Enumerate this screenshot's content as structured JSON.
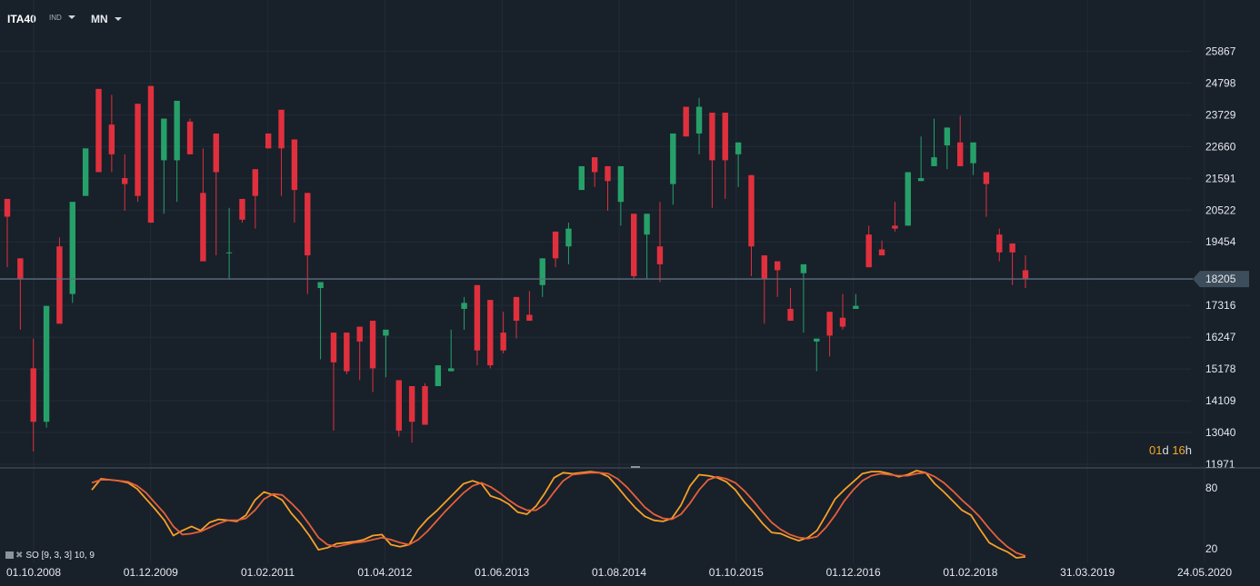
{
  "header": {
    "symbol": "ITA40",
    "symbol_type": "IND",
    "timeframe": "MN"
  },
  "timer": {
    "days": "01",
    "days_unit": "d",
    "hours": "16",
    "hours_unit": "h"
  },
  "indicator": {
    "label": "SO [9, 3, 3] 10, 9",
    "icon": "settings-icon",
    "close_icon": "close-icon"
  },
  "colors": {
    "up": "#26a069",
    "down": "#e0303d",
    "k_line": "#f6a028",
    "d_line": "#e5603a",
    "current_price_line": "#5d6e7e",
    "background": "#18202a"
  },
  "chart_data": [
    {
      "type": "candlestick",
      "x_labels": [
        "01.10.2008",
        "01.12.2009",
        "01.02.2011",
        "01.04.2012",
        "01.06.2013",
        "01.08.2014",
        "01.10.2015",
        "01.12.2016",
        "01.02.2018",
        "31.03.2019",
        "24.05.2020"
      ],
      "y_ticks": [
        11971,
        13040,
        14109,
        15178,
        16247,
        17316,
        18205,
        19454,
        20522,
        21591,
        22660,
        23729,
        24798,
        25867
      ],
      "ylim": [
        11971,
        26400
      ],
      "current_price": 18205,
      "values": [
        [
          20900,
          20300,
          19100,
          18600
        ],
        [
          18900,
          18200,
          17700,
          16500
        ],
        [
          15200,
          13400,
          16200,
          12400
        ],
        [
          13400,
          17300,
          15400,
          13200
        ],
        [
          19300,
          16700,
          19000,
          19600
        ],
        [
          17700,
          20800,
          17800,
          17400
        ],
        [
          21000,
          22600,
          21000,
          22500
        ],
        [
          24600,
          21800,
          24200,
          24100
        ],
        [
          23400,
          22400,
          21800,
          24400
        ],
        [
          21600,
          21400,
          22400,
          20500
        ],
        [
          24100,
          21000,
          23000,
          20800
        ],
        [
          24700,
          20100,
          20800,
          20100
        ],
        [
          22200,
          23600,
          20700,
          20400
        ],
        [
          22200,
          24200,
          20800,
          23100
        ],
        [
          23500,
          22400,
          22800,
          23600
        ],
        [
          21100,
          18800,
          22600,
          20500
        ],
        [
          23100,
          21800,
          19100,
          19000
        ],
        [
          19100,
          19100,
          18200,
          20600
        ],
        [
          20900,
          20200,
          20100,
          20500
        ],
        [
          21900,
          21000,
          19900,
          21000
        ],
        [
          23100,
          22600,
          22600,
          22700
        ],
        [
          23900,
          22600,
          21000,
          22000
        ],
        [
          22900,
          21200,
          20100,
          21200
        ],
        [
          21100,
          19000,
          17800,
          17700
        ],
        [
          17900,
          18100,
          15700,
          15500
        ],
        [
          16400,
          15400,
          13300,
          13100
        ],
        [
          16400,
          15100,
          15300,
          15000
        ],
        [
          16600,
          16100,
          14800,
          15000
        ],
        [
          16800,
          15200,
          16300,
          14400
        ],
        [
          16300,
          16500,
          14900,
          15400
        ],
        [
          14800,
          13100,
          13600,
          12900
        ],
        [
          14600,
          13400,
          13000,
          12700
        ],
        [
          14600,
          13300,
          14700,
          14300
        ],
        [
          14600,
          15300,
          15300,
          14700
        ],
        [
          15100,
          15200,
          16500,
          15400
        ],
        [
          17200,
          17400,
          17600,
          16500
        ],
        [
          18000,
          15800,
          15300,
          16100
        ],
        [
          17500,
          15300,
          15600,
          15200
        ],
        [
          16400,
          15800,
          17100,
          15700
        ],
        [
          17600,
          16800,
          16900,
          16200
        ],
        [
          17000,
          16800,
          17800,
          17200
        ],
        [
          18000,
          18900,
          18400,
          17600
        ],
        [
          19800,
          18900,
          19300,
          18600
        ],
        [
          19300,
          19900,
          20100,
          18700
        ],
        [
          21200,
          22000,
          21800,
          21200
        ],
        [
          22300,
          21800,
          21300,
          21800
        ],
        [
          22000,
          21500,
          21100,
          20500
        ],
        [
          20800,
          22000,
          20000,
          20600
        ],
        [
          20400,
          18300,
          18700,
          18200
        ],
        [
          19700,
          20400,
          19300,
          18200
        ],
        [
          19300,
          18700,
          20800,
          18100
        ],
        [
          21400,
          23100,
          22600,
          20700
        ],
        [
          24000,
          23000,
          24000,
          23500
        ],
        [
          23100,
          24000,
          24300,
          22400
        ],
        [
          23800,
          22200,
          23600,
          20600
        ],
        [
          23800,
          22200,
          21100,
          20900
        ],
        [
          22400,
          22800,
          21300,
          22700
        ],
        [
          21700,
          19300,
          18300,
          18400
        ],
        [
          19000,
          18200,
          16800,
          16700
        ],
        [
          18800,
          18500,
          17700,
          17600
        ],
        [
          17200,
          16800,
          17600,
          17900
        ],
        [
          18400,
          18700,
          17500,
          16400
        ],
        [
          16100,
          16200,
          15800,
          15100
        ],
        [
          17100,
          16300,
          15600,
          17100
        ],
        [
          16900,
          16600,
          17700,
          16500
        ],
        [
          17200,
          17300,
          17600,
          17700
        ],
        [
          19700,
          18600,
          20000,
          19200
        ],
        [
          19200,
          19000,
          19100,
          19500
        ],
        [
          20000,
          19900,
          19800,
          20800
        ],
        [
          20000,
          21800,
          21400,
          21100
        ],
        [
          21500,
          21600,
          21700,
          23000
        ],
        [
          22000,
          22300,
          23600,
          22300
        ],
        [
          22700,
          23300,
          21900,
          23300
        ],
        [
          22800,
          22000,
          23400,
          23700
        ],
        [
          22100,
          22800,
          21700,
          22100
        ],
        [
          21800,
          21400,
          20700,
          20300
        ],
        [
          19700,
          19100,
          19900,
          18800
        ],
        [
          19400,
          19100,
          19300,
          18000
        ],
        [
          18500,
          18200,
          19000,
          17900
        ]
      ]
    },
    {
      "type": "line",
      "title": "SO [9, 3, 3] 10, 9",
      "y_ticks": [
        20,
        80
      ],
      "series": [
        {
          "values": [
            78,
            89,
            88,
            87,
            85,
            79,
            69,
            59,
            48,
            33,
            38,
            42,
            38,
            46,
            49,
            48,
            47,
            53,
            68,
            76,
            73,
            68,
            55,
            45,
            33,
            19,
            21,
            25,
            26,
            27,
            29,
            33,
            34,
            24,
            22,
            24,
            39,
            49,
            57,
            66,
            75,
            84,
            87,
            84,
            72,
            69,
            64,
            56,
            54,
            62,
            75,
            90,
            95,
            94,
            95,
            96,
            95,
            91,
            81,
            70,
            60,
            52,
            48,
            47,
            50,
            63,
            82,
            93,
            92,
            90,
            86,
            78,
            66,
            56,
            45,
            36,
            35,
            31,
            28,
            31,
            38,
            53,
            69,
            78,
            86,
            94,
            96,
            96,
            94,
            91,
            93,
            97,
            95,
            84,
            76,
            67,
            58,
            53,
            39,
            26,
            21,
            17,
            11,
            12
          ]
        },
        {
          "values": [
            85,
            88,
            88,
            87,
            86,
            82,
            75,
            65,
            55,
            42,
            34,
            35,
            37,
            41,
            45,
            48,
            48,
            50,
            58,
            69,
            74,
            73,
            65,
            56,
            44,
            31,
            24,
            22,
            24,
            26,
            27,
            29,
            31,
            29,
            26,
            24,
            29,
            37,
            47,
            57,
            66,
            75,
            82,
            85,
            81,
            75,
            68,
            62,
            58,
            58,
            64,
            76,
            87,
            93,
            94,
            95,
            95,
            94,
            89,
            81,
            71,
            61,
            54,
            50,
            49,
            54,
            65,
            78,
            88,
            91,
            89,
            85,
            77,
            67,
            56,
            46,
            39,
            34,
            31,
            30,
            32,
            41,
            53,
            67,
            78,
            87,
            92,
            94,
            93,
            92,
            92,
            94,
            95,
            91,
            85,
            77,
            68,
            60,
            51,
            40,
            30,
            22,
            16,
            13
          ]
        }
      ]
    }
  ]
}
